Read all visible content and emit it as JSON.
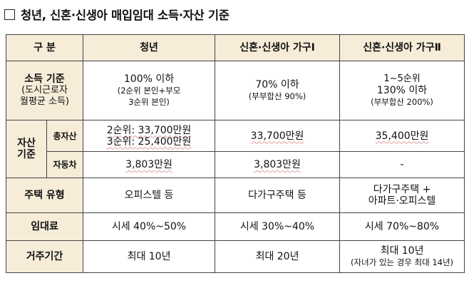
{
  "title": "청년, 신혼·신생아 매입임대 소득·자산 기준",
  "headers": {
    "category": "구  분",
    "youth": "청년",
    "newlywed1": "신혼·신생아 가구Ⅰ",
    "newlywed2": "신혼·신생아 가구Ⅱ"
  },
  "income": {
    "label": "소득 기준",
    "sub1": "(도시근로자",
    "sub2": "월평균 소득)",
    "youth_1": "100% 이하",
    "youth_2": "(2순위 본인+부모",
    "youth_3": "3순위 본인)",
    "nw1_1": "70% 이하",
    "nw1_2": "(부부합산 90%)",
    "nw2_1": "1~5순위",
    "nw2_2": "130% 이하",
    "nw2_3": "(부부합산 200%)"
  },
  "asset": {
    "label_1": "자산",
    "label_2": "기준",
    "total_label": "총자산",
    "total_youth_1": "2순위: 33,700만원",
    "total_youth_2": "3순위: 25,400만원",
    "total_nw1": "33,700만원",
    "total_nw2": "35,400만원",
    "car_label": "자동차",
    "car_youth": "3,803만원",
    "car_nw1": "3,803만원",
    "car_nw2": "-"
  },
  "housing": {
    "label": "주택 유형",
    "youth": "오피스텔 등",
    "nw1": "다가구주택 등",
    "nw2_1": "다가구주택 +",
    "nw2_2": "아파트·오피스텔"
  },
  "rent": {
    "label": "임대료",
    "youth": "시세 40%~50%",
    "nw1": "시세 30%~40%",
    "nw2": "시세 70%~80%"
  },
  "stay": {
    "label": "거주기간",
    "youth": "최대 10년",
    "nw1": "최대 20년",
    "nw2_1": "최대 10년",
    "nw2_2": "(자녀가 있는 경우 최대 14년)"
  }
}
